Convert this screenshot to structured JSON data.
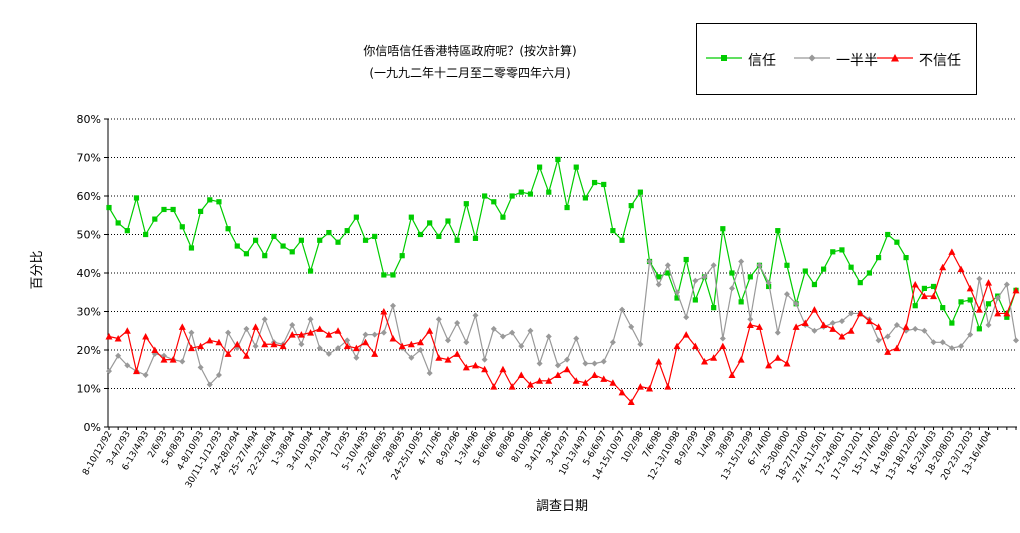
{
  "title": {
    "line1": "你信唔信任香港特區政府呢？(按次計算)",
    "line2": "(一九九二年十二月至二零零四年六月)"
  },
  "legend": {
    "items": [
      {
        "label": "信任",
        "color": "#00cc00",
        "marker": "square"
      },
      {
        "label": "一半半",
        "color": "#999999",
        "marker": "diamond"
      },
      {
        "label": "不信任",
        "color": "#ff0000",
        "marker": "triangle"
      }
    ]
  },
  "chart_data": {
    "type": "line",
    "ylabel": "百分比",
    "xlabel": "調查日期",
    "ylim": [
      0,
      80
    ],
    "yticks": [
      "0%",
      "10%",
      "20%",
      "30%",
      "40%",
      "50%",
      "60%",
      "70%",
      "80%"
    ],
    "grid": true,
    "legend_position": "top-right",
    "x_tick_labels": [
      "8-10/12/92",
      "3-4/2/93",
      "6-13/4/93",
      "2/6/93",
      "5-6/8/93",
      "4-8/10/93",
      "30/11-1/12/93",
      "24-28/2/94",
      "25-27/4/94",
      "22-23/6/94",
      "1-3/8/94",
      "3-4/10/94",
      "7-9/12/94",
      "1/2/95",
      "5-10/4/95",
      "27-28/6/95",
      "28/8/95",
      "24-25/10/95",
      "4-7/1/96",
      "8-9/2/96",
      "1-3/4/96",
      "5-6/6/96",
      "6/8/96",
      "8/10/96",
      "3-4/12/96",
      "3-4/2/97",
      "10-13/4/97",
      "5-6/6/97",
      "14-15/10/97",
      "10/2/98",
      "7/6/98",
      "12-13/10/98",
      "8-9/2/99",
      "1/4/99",
      "3/8/99",
      "13-15/12/99",
      "6-7/4/00",
      "25-30/8/00",
      "18-27/12/00",
      "27/4-11/5/01",
      "17-24/8/01",
      "17-19/12/01",
      "15-17/4/02",
      "14-19/8/02",
      "13-18/12/02",
      "16-23/4/03",
      "18-20/8/03",
      "20-23/12/03",
      "13-16/4/04"
    ],
    "series": [
      {
        "name": "信任",
        "color": "#00cc00",
        "values": [
          57.0,
          53.0,
          51.0,
          59.5,
          50.0,
          54.0,
          56.5,
          56.5,
          52.0,
          46.5,
          56.0,
          59.0,
          58.5,
          51.5,
          47.0,
          45.0,
          48.5,
          44.5,
          49.5,
          47.0,
          45.5,
          48.5,
          40.5,
          48.5,
          50.5,
          48.0,
          51.0,
          54.5,
          48.5,
          49.5,
          39.5,
          39.5,
          44.5,
          54.5,
          50.0,
          53.0,
          49.5,
          53.5,
          48.5,
          58.0,
          49.0,
          60.0,
          58.5,
          54.5,
          60.0,
          61.0,
          60.5,
          67.5,
          61.0,
          69.5,
          57.0,
          67.5,
          59.5,
          63.5,
          63.0,
          51.0,
          48.5,
          57.5,
          61.0,
          43.0,
          39.0,
          40.0,
          33.5,
          43.5,
          33.0,
          39.0,
          31.0,
          51.5,
          40.0,
          32.5,
          39.0,
          42.0,
          36.5,
          51.0,
          42.0,
          32.0,
          40.5,
          37.0,
          41.0,
          45.5,
          46.0,
          41.5,
          37.5,
          40.0,
          44.0,
          50.0,
          48.0,
          44.0,
          31.5,
          36.0,
          36.5,
          31.0,
          27.0,
          32.5,
          33.0,
          25.5,
          32.0,
          34.0,
          28.5,
          35.5
        ]
      },
      {
        "name": "一半半",
        "color": "#999999",
        "values": [
          14.5,
          18.5,
          16.0,
          14.5,
          13.5,
          19.0,
          18.5,
          17.5,
          17.0,
          24.5,
          15.5,
          11.0,
          13.5,
          24.5,
          20.5,
          25.5,
          21.0,
          28.0,
          22.0,
          21.5,
          26.5,
          21.5,
          28.0,
          20.5,
          19.0,
          20.5,
          22.5,
          18.0,
          24.0,
          24.0,
          24.5,
          31.5,
          20.5,
          18.0,
          20.0,
          14.0,
          28.0,
          22.5,
          27.0,
          22.0,
          29.0,
          17.5,
          25.5,
          23.5,
          24.5,
          21.0,
          25.0,
          16.5,
          23.5,
          16.0,
          17.5,
          23.0,
          16.5,
          16.5,
          17.0,
          22.0,
          30.5,
          26.0,
          21.5,
          43.0,
          37.0,
          42.0,
          35.0,
          28.5,
          38.0,
          39.0,
          42.0,
          23.0,
          36.0,
          43.0,
          28.0,
          42.0,
          37.5,
          24.5,
          34.5,
          32.0,
          26.5,
          25.0,
          26.0,
          27.0,
          27.5,
          29.5,
          29.5,
          28.0,
          22.5,
          23.5,
          26.5,
          25.0,
          25.5,
          25.0,
          22.0,
          22.0,
          20.5,
          21.0,
          24.0,
          38.5,
          26.5,
          33.5,
          37.0,
          22.5
        ]
      },
      {
        "name": "不信任",
        "color": "#ff0000",
        "values": [
          23.5,
          23.0,
          25.0,
          14.5,
          23.5,
          20.0,
          17.5,
          17.5,
          26.0,
          20.5,
          21.0,
          22.5,
          22.0,
          19.0,
          21.5,
          18.5,
          26.0,
          21.5,
          21.5,
          21.0,
          24.0,
          24.0,
          24.5,
          25.5,
          24.0,
          25.0,
          21.0,
          20.5,
          22.0,
          19.0,
          30.0,
          23.0,
          21.0,
          21.5,
          22.0,
          25.0,
          18.0,
          17.5,
          19.0,
          15.5,
          16.0,
          15.0,
          10.5,
          15.0,
          10.5,
          13.5,
          11.0,
          12.0,
          12.0,
          13.5,
          15.0,
          12.0,
          11.5,
          13.5,
          12.5,
          11.5,
          9.0,
          6.5,
          10.5,
          10.0,
          17.0,
          10.5,
          21.0,
          24.0,
          21.0,
          17.0,
          18.0,
          21.0,
          13.5,
          17.5,
          26.5,
          26.0,
          16.0,
          18.0,
          16.5,
          26.0,
          27.0,
          30.5,
          26.5,
          25.5,
          23.5,
          25.0,
          29.5,
          27.5,
          26.0,
          19.5,
          20.5,
          26.0,
          37.0,
          34.0,
          34.0,
          41.5,
          45.5,
          41.0,
          36.0,
          30.5,
          37.5,
          29.5,
          29.5,
          35.5
        ]
      }
    ]
  }
}
